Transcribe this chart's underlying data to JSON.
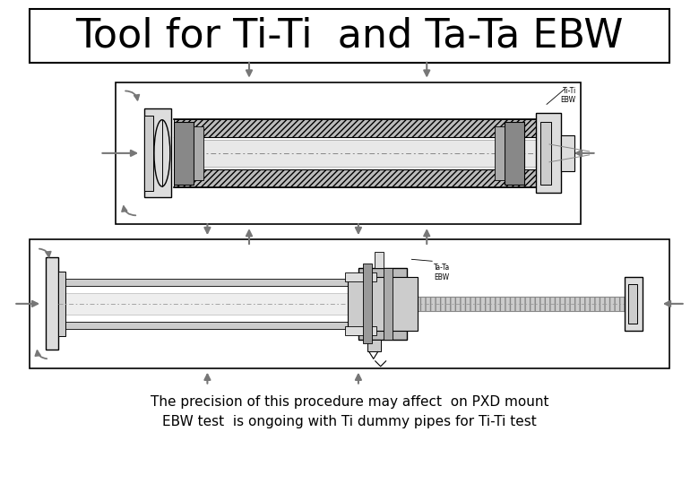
{
  "title": "Tool for Ti-Ti  and Ta-Ta EBW",
  "caption_line1": "The precision of this procedure may affect  on PXD mount",
  "caption_line2": "EBW test  is ongoing with Ti dummy pipes for Ti-Ti test",
  "bg_color": "#ffffff",
  "title_fontsize": 32,
  "caption_fontsize": 11,
  "gray": "#888888",
  "dark": "#555555",
  "light": "#cccccc",
  "mid_gray": "#aaaaaa",
  "arrow_color": "#777777"
}
